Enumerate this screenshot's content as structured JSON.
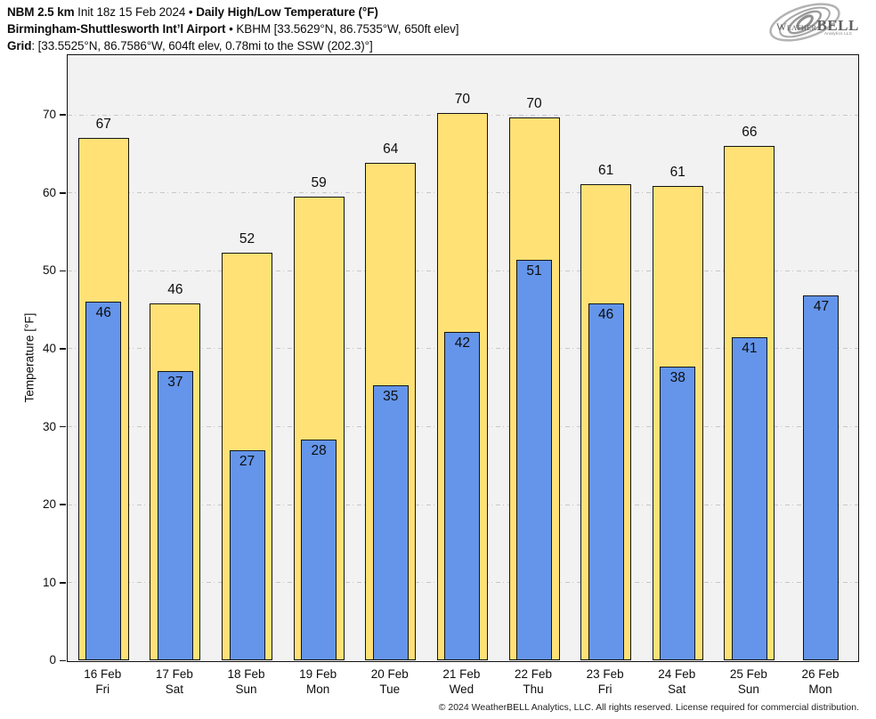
{
  "header": {
    "lines": [
      {
        "segments": [
          {
            "t": "NBM 2.5 km",
            "b": 1
          },
          {
            "t": " Init 18z 15 Feb 2024 • ",
            "b": 0
          },
          {
            "t": "Daily High/Low Temperature (°F)",
            "b": 1
          }
        ]
      },
      {
        "segments": [
          {
            "t": "Birmingham-Shuttlesworth Int’l Airport",
            "b": 1
          },
          {
            "t": " • KBHM [33.5629°N, 86.7535°W, 650ft elev]",
            "b": 0
          }
        ]
      },
      {
        "segments": [
          {
            "t": "Grid",
            "b": 1
          },
          {
            "t": ": [33.5525°N, 86.7586°W, 604ft elev, 0.78mi to the SSW (202.3)°]",
            "b": 0
          }
        ]
      }
    ]
  },
  "logo": {
    "weather": "Weather",
    "bell": "BELL",
    "sub": "Analytics LLC"
  },
  "chart_data": {
    "type": "bar",
    "title": "Daily High/Low Temperature (°F)",
    "station": "KBHM Birmingham-Shuttlesworth Int’l Airport",
    "categories": [
      "16 Feb",
      "17 Feb",
      "18 Feb",
      "19 Feb",
      "20 Feb",
      "21 Feb",
      "22 Feb",
      "23 Feb",
      "24 Feb",
      "25 Feb",
      "26 Feb"
    ],
    "weekdays": [
      "Fri",
      "Sat",
      "Sun",
      "Mon",
      "Tue",
      "Wed",
      "Thu",
      "Fri",
      "Sat",
      "Sun",
      "Mon"
    ],
    "series": [
      {
        "name": "High",
        "color": "#ffe176",
        "labels": [
          67,
          46,
          52,
          59,
          64,
          70,
          70,
          61,
          61,
          66,
          null
        ],
        "bar_tops": [
          67.0,
          45.7,
          52.3,
          59.4,
          63.8,
          70.2,
          69.6,
          61.1,
          60.8,
          65.9,
          null
        ]
      },
      {
        "name": "Low",
        "color": "#6495ea",
        "labels": [
          46,
          37,
          27,
          28,
          35,
          42,
          51,
          46,
          38,
          41,
          47
        ],
        "bar_tops": [
          46.0,
          37.1,
          26.9,
          28.3,
          35.3,
          42.1,
          51.4,
          45.8,
          37.6,
          41.4,
          46.8
        ]
      }
    ],
    "ylabel": "Temperature [°F]",
    "ylim": [
      0,
      77.6
    ],
    "yticks": [
      0,
      10,
      20,
      30,
      40,
      50,
      60,
      70
    ],
    "grid": "horizontal dash-dot",
    "plot_bg": "#f2f2f2",
    "bar_border": "#141414",
    "legend": "none"
  },
  "footer": {
    "copyright": "© 2024 WeatherBELL Analytics, LLC. All rights reserved. License required for commercial distribution."
  }
}
